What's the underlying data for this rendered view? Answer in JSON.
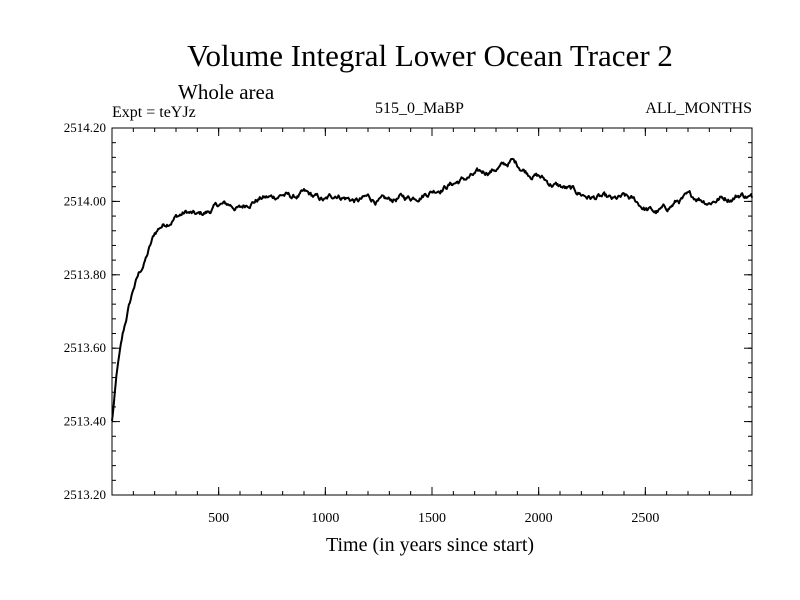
{
  "chart_data": {
    "type": "line",
    "title": "Volume Integral Lower Ocean Tracer 2",
    "subtitle": "Whole area",
    "experiment": "Expt = teYJz",
    "run_label": "515_0_MaBP",
    "season_label": "ALL_MONTHS",
    "xlabel": "Time (in years since start)",
    "ylabel": "",
    "xlim": [
      0,
      3000
    ],
    "ylim": [
      2513.2,
      2514.2
    ],
    "x_ticks": [
      500,
      1000,
      1500,
      2000,
      2500
    ],
    "y_ticks": [
      "2513.20",
      "2513.40",
      "2513.60",
      "2513.80",
      "2514.00",
      "2514.20"
    ],
    "grid": false,
    "series": [
      {
        "name": "Volume Integral Lower Ocean Tracer 2",
        "color": "#000000",
        "x": [
          0,
          25,
          50,
          75,
          100,
          125,
          150,
          175,
          200,
          225,
          250,
          300,
          350,
          400,
          450,
          500,
          550,
          600,
          650,
          700,
          750,
          800,
          850,
          900,
          950,
          1000,
          1050,
          1100,
          1150,
          1200,
          1250,
          1300,
          1350,
          1400,
          1450,
          1500,
          1550,
          1600,
          1650,
          1700,
          1750,
          1800,
          1850,
          1875,
          1900,
          1950,
          2000,
          2050,
          2100,
          2150,
          2200,
          2250,
          2300,
          2350,
          2400,
          2450,
          2500,
          2550,
          2600,
          2650,
          2700,
          2750,
          2800,
          2850,
          2900,
          2950,
          3000
        ],
        "values": [
          2513.4,
          2513.54,
          2513.63,
          2513.7,
          2513.76,
          2513.8,
          2513.83,
          2513.87,
          2513.91,
          2513.93,
          2513.94,
          2513.96,
          2513.97,
          2513.96,
          2513.97,
          2513.99,
          2513.99,
          2513.98,
          2514.0,
          2514.01,
          2514.01,
          2514.02,
          2514.01,
          2514.02,
          2514.01,
          2514.0,
          2514.02,
          2514.01,
          2514.0,
          2514.01,
          2514.0,
          2514.0,
          2514.01,
          2514.01,
          2514.02,
          2514.03,
          2514.04,
          2514.05,
          2514.06,
          2514.07,
          2514.08,
          2514.09,
          2514.1,
          2514.11,
          2514.1,
          2514.08,
          2514.07,
          2514.05,
          2514.04,
          2514.03,
          2514.02,
          2514.01,
          2514.01,
          2514.0,
          2514.01,
          2514.0,
          2513.98,
          2513.97,
          2513.98,
          2514.0,
          2514.01,
          2514.01,
          2514.0,
          2514.01,
          2514.01,
          2514.02,
          2514.01
        ]
      }
    ]
  }
}
